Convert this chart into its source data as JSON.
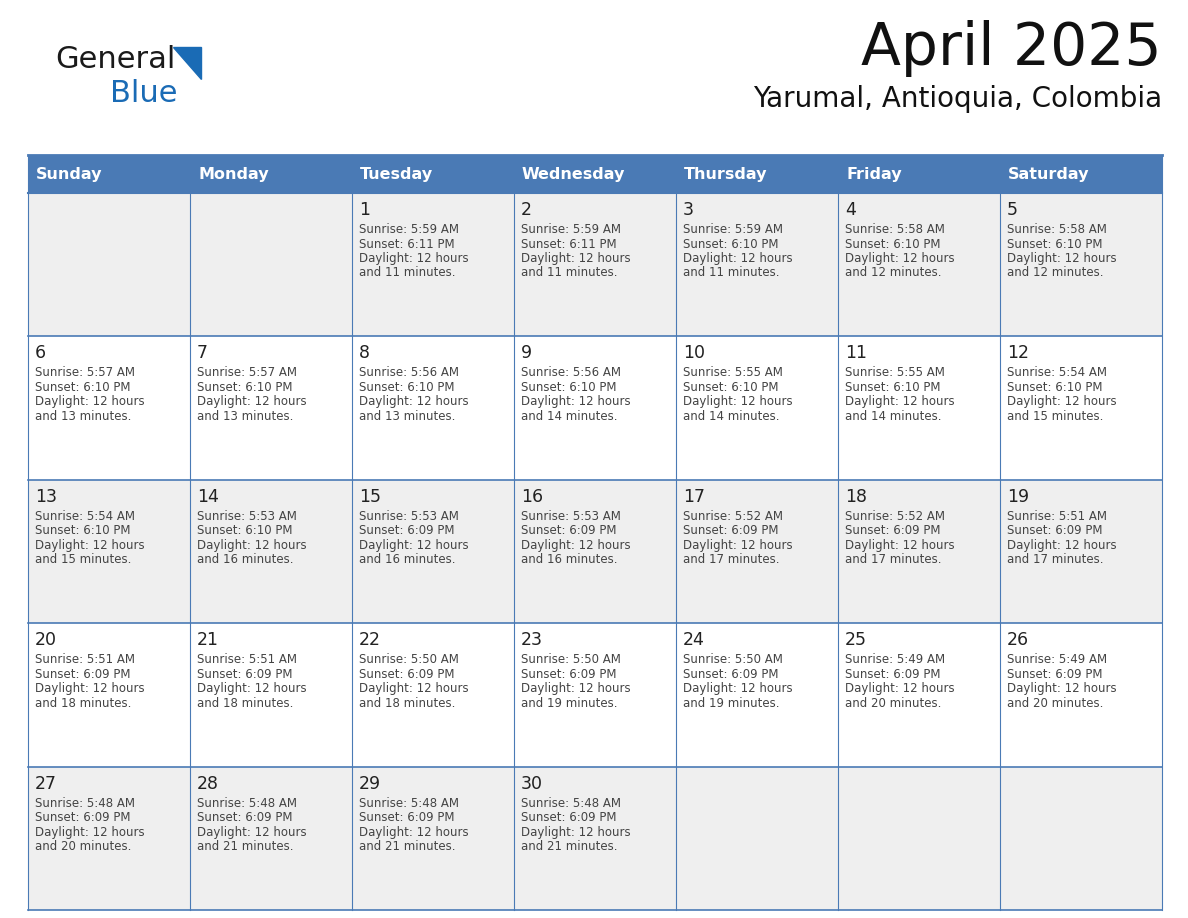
{
  "title": "April 2025",
  "subtitle": "Yarumal, Antioquia, Colombia",
  "header_bg_color": "#4a7ab5",
  "header_text_color": "#ffffff",
  "day_names": [
    "Sunday",
    "Monday",
    "Tuesday",
    "Wednesday",
    "Thursday",
    "Friday",
    "Saturday"
  ],
  "row_bg_light": "#efefef",
  "row_bg_white": "#ffffff",
  "cell_border_color": "#4a7ab5",
  "text_color": "#444444",
  "day_num_color": "#222222",
  "logo_general_color": "#1a1a1a",
  "logo_blue_color": "#1a6bb5",
  "logo_triangle_color": "#1a6bb5",
  "title_color": "#111111",
  "subtitle_color": "#111111",
  "days": [
    {
      "date": 1,
      "col": 2,
      "row": 0,
      "sunrise": "5:59 AM",
      "sunset": "6:11 PM",
      "daylight_hours": 12,
      "daylight_minutes": 11
    },
    {
      "date": 2,
      "col": 3,
      "row": 0,
      "sunrise": "5:59 AM",
      "sunset": "6:11 PM",
      "daylight_hours": 12,
      "daylight_minutes": 11
    },
    {
      "date": 3,
      "col": 4,
      "row": 0,
      "sunrise": "5:59 AM",
      "sunset": "6:10 PM",
      "daylight_hours": 12,
      "daylight_minutes": 11
    },
    {
      "date": 4,
      "col": 5,
      "row": 0,
      "sunrise": "5:58 AM",
      "sunset": "6:10 PM",
      "daylight_hours": 12,
      "daylight_minutes": 12
    },
    {
      "date": 5,
      "col": 6,
      "row": 0,
      "sunrise": "5:58 AM",
      "sunset": "6:10 PM",
      "daylight_hours": 12,
      "daylight_minutes": 12
    },
    {
      "date": 6,
      "col": 0,
      "row": 1,
      "sunrise": "5:57 AM",
      "sunset": "6:10 PM",
      "daylight_hours": 12,
      "daylight_minutes": 13
    },
    {
      "date": 7,
      "col": 1,
      "row": 1,
      "sunrise": "5:57 AM",
      "sunset": "6:10 PM",
      "daylight_hours": 12,
      "daylight_minutes": 13
    },
    {
      "date": 8,
      "col": 2,
      "row": 1,
      "sunrise": "5:56 AM",
      "sunset": "6:10 PM",
      "daylight_hours": 12,
      "daylight_minutes": 13
    },
    {
      "date": 9,
      "col": 3,
      "row": 1,
      "sunrise": "5:56 AM",
      "sunset": "6:10 PM",
      "daylight_hours": 12,
      "daylight_minutes": 14
    },
    {
      "date": 10,
      "col": 4,
      "row": 1,
      "sunrise": "5:55 AM",
      "sunset": "6:10 PM",
      "daylight_hours": 12,
      "daylight_minutes": 14
    },
    {
      "date": 11,
      "col": 5,
      "row": 1,
      "sunrise": "5:55 AM",
      "sunset": "6:10 PM",
      "daylight_hours": 12,
      "daylight_minutes": 14
    },
    {
      "date": 12,
      "col": 6,
      "row": 1,
      "sunrise": "5:54 AM",
      "sunset": "6:10 PM",
      "daylight_hours": 12,
      "daylight_minutes": 15
    },
    {
      "date": 13,
      "col": 0,
      "row": 2,
      "sunrise": "5:54 AM",
      "sunset": "6:10 PM",
      "daylight_hours": 12,
      "daylight_minutes": 15
    },
    {
      "date": 14,
      "col": 1,
      "row": 2,
      "sunrise": "5:53 AM",
      "sunset": "6:10 PM",
      "daylight_hours": 12,
      "daylight_minutes": 16
    },
    {
      "date": 15,
      "col": 2,
      "row": 2,
      "sunrise": "5:53 AM",
      "sunset": "6:09 PM",
      "daylight_hours": 12,
      "daylight_minutes": 16
    },
    {
      "date": 16,
      "col": 3,
      "row": 2,
      "sunrise": "5:53 AM",
      "sunset": "6:09 PM",
      "daylight_hours": 12,
      "daylight_minutes": 16
    },
    {
      "date": 17,
      "col": 4,
      "row": 2,
      "sunrise": "5:52 AM",
      "sunset": "6:09 PM",
      "daylight_hours": 12,
      "daylight_minutes": 17
    },
    {
      "date": 18,
      "col": 5,
      "row": 2,
      "sunrise": "5:52 AM",
      "sunset": "6:09 PM",
      "daylight_hours": 12,
      "daylight_minutes": 17
    },
    {
      "date": 19,
      "col": 6,
      "row": 2,
      "sunrise": "5:51 AM",
      "sunset": "6:09 PM",
      "daylight_hours": 12,
      "daylight_minutes": 17
    },
    {
      "date": 20,
      "col": 0,
      "row": 3,
      "sunrise": "5:51 AM",
      "sunset": "6:09 PM",
      "daylight_hours": 12,
      "daylight_minutes": 18
    },
    {
      "date": 21,
      "col": 1,
      "row": 3,
      "sunrise": "5:51 AM",
      "sunset": "6:09 PM",
      "daylight_hours": 12,
      "daylight_minutes": 18
    },
    {
      "date": 22,
      "col": 2,
      "row": 3,
      "sunrise": "5:50 AM",
      "sunset": "6:09 PM",
      "daylight_hours": 12,
      "daylight_minutes": 18
    },
    {
      "date": 23,
      "col": 3,
      "row": 3,
      "sunrise": "5:50 AM",
      "sunset": "6:09 PM",
      "daylight_hours": 12,
      "daylight_minutes": 19
    },
    {
      "date": 24,
      "col": 4,
      "row": 3,
      "sunrise": "5:50 AM",
      "sunset": "6:09 PM",
      "daylight_hours": 12,
      "daylight_minutes": 19
    },
    {
      "date": 25,
      "col": 5,
      "row": 3,
      "sunrise": "5:49 AM",
      "sunset": "6:09 PM",
      "daylight_hours": 12,
      "daylight_minutes": 20
    },
    {
      "date": 26,
      "col": 6,
      "row": 3,
      "sunrise": "5:49 AM",
      "sunset": "6:09 PM",
      "daylight_hours": 12,
      "daylight_minutes": 20
    },
    {
      "date": 27,
      "col": 0,
      "row": 4,
      "sunrise": "5:48 AM",
      "sunset": "6:09 PM",
      "daylight_hours": 12,
      "daylight_minutes": 20
    },
    {
      "date": 28,
      "col": 1,
      "row": 4,
      "sunrise": "5:48 AM",
      "sunset": "6:09 PM",
      "daylight_hours": 12,
      "daylight_minutes": 21
    },
    {
      "date": 29,
      "col": 2,
      "row": 4,
      "sunrise": "5:48 AM",
      "sunset": "6:09 PM",
      "daylight_hours": 12,
      "daylight_minutes": 21
    },
    {
      "date": 30,
      "col": 3,
      "row": 4,
      "sunrise": "5:48 AM",
      "sunset": "6:09 PM",
      "daylight_hours": 12,
      "daylight_minutes": 21
    }
  ]
}
